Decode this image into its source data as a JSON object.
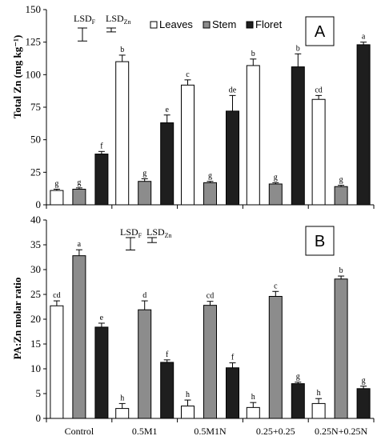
{
  "chart_data": [
    {
      "type": "bar",
      "panel": "A",
      "ylabel": "Total Zn (mg kg⁻¹)",
      "ylim": [
        0,
        150
      ],
      "yticks": [
        0,
        25,
        50,
        75,
        100,
        125,
        150
      ],
      "categories": [
        "Control",
        "0.5M1",
        "0.5M1N",
        "0.25+0.25",
        "0.25N+0.25N"
      ],
      "series": [
        {
          "name": "Leaves",
          "color": "#ffffff",
          "values": [
            11,
            110,
            92,
            107,
            81
          ],
          "errors": [
            1,
            5,
            4,
            5,
            3
          ],
          "letters": [
            "g",
            "b",
            "c",
            "b",
            "cd"
          ]
        },
        {
          "name": "Stem",
          "color": "#8c8c8c",
          "values": [
            12,
            18,
            17,
            16,
            14
          ],
          "errors": [
            1,
            2,
            1,
            1,
            1
          ],
          "letters": [
            "g",
            "g",
            "g",
            "g",
            "g"
          ]
        },
        {
          "name": "Floret",
          "color": "#1e1e1e",
          "values": [
            39,
            63,
            72,
            106,
            123
          ],
          "errors": [
            2,
            6,
            12,
            10,
            2
          ],
          "letters": [
            "f",
            "e",
            "de",
            "b",
            "a"
          ]
        }
      ],
      "lsd": {
        "label_f": "LSD",
        "sub_f": "F",
        "value_f": 10,
        "label_zn": "LSD",
        "sub_zn": "Zn",
        "value_zn": 3
      },
      "legend": {
        "position": "top-right",
        "items": [
          "Leaves",
          "Stem",
          "Floret"
        ]
      },
      "grid": false
    },
    {
      "type": "bar",
      "panel": "B",
      "ylabel": "PA:Zn  molar ratio",
      "ylim": [
        0,
        40
      ],
      "yticks": [
        0,
        5,
        10,
        15,
        20,
        25,
        30,
        35,
        40
      ],
      "categories": [
        "Control",
        "0.5M1",
        "0.5M1N",
        "0.25+0.25",
        "0.25N+0.25N"
      ],
      "series": [
        {
          "name": "Leaves",
          "color": "#ffffff",
          "values": [
            22.7,
            2.0,
            2.5,
            2.2,
            3.0
          ],
          "errors": [
            1.0,
            1.0,
            1.2,
            1.0,
            1.0
          ],
          "letters": [
            "cd",
            "h",
            "h",
            "h",
            "h"
          ]
        },
        {
          "name": "Stem",
          "color": "#8c8c8c",
          "values": [
            32.8,
            21.9,
            22.8,
            24.6,
            28.1
          ],
          "errors": [
            1.2,
            1.8,
            0.8,
            1.0,
            0.6
          ],
          "letters": [
            "a",
            "d",
            "cd",
            "c",
            "b"
          ]
        },
        {
          "name": "Floret",
          "color": "#1e1e1e",
          "values": [
            18.4,
            11.3,
            10.2,
            7.0,
            6.0
          ],
          "errors": [
            0.8,
            0.5,
            1.0,
            0.3,
            0.5
          ],
          "letters": [
            "e",
            "f",
            "f",
            "g",
            "g"
          ]
        }
      ],
      "lsd": {
        "label_f": "LSD",
        "sub_f": "F",
        "value_f": 2.5,
        "label_zn": "LSD",
        "sub_zn": "Zn",
        "value_zn": 1
      },
      "grid": false
    }
  ]
}
